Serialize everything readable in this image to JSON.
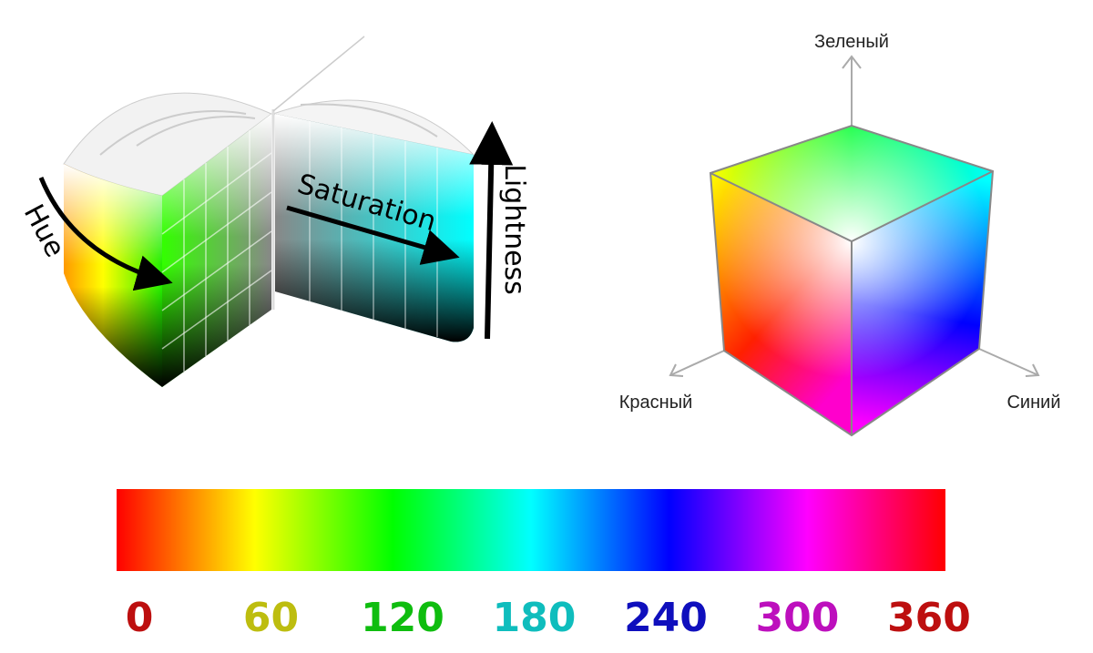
{
  "hsl_diagram": {
    "hue_label": "Hue",
    "saturation_label": "Saturation",
    "lightness_label": "Lightness"
  },
  "rgb_cube": {
    "green_label": "Зеленый",
    "red_label": "Красный",
    "blue_label": "Синий"
  },
  "hue_scale": {
    "ticks": [
      0,
      60,
      120,
      180,
      240,
      300,
      360
    ]
  }
}
